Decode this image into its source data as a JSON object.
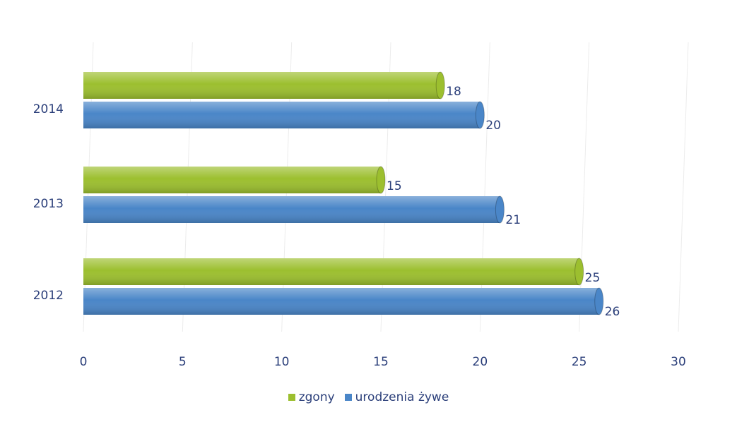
{
  "chart_data": {
    "type": "bar",
    "orientation": "horizontal",
    "categories": [
      "2014",
      "2013",
      "2012"
    ],
    "series": [
      {
        "name": "zgony",
        "values": [
          18,
          15,
          25
        ],
        "color": "#9cbf2f"
      },
      {
        "name": "urodzenia żywe",
        "values": [
          20,
          21,
          26
        ],
        "color": "#4a86c8"
      }
    ],
    "x_ticks": [
      "0",
      "5",
      "10",
      "15",
      "20",
      "25",
      "30"
    ],
    "xlim": [
      0,
      30
    ],
    "grid": true,
    "legend_position": "bottom"
  }
}
